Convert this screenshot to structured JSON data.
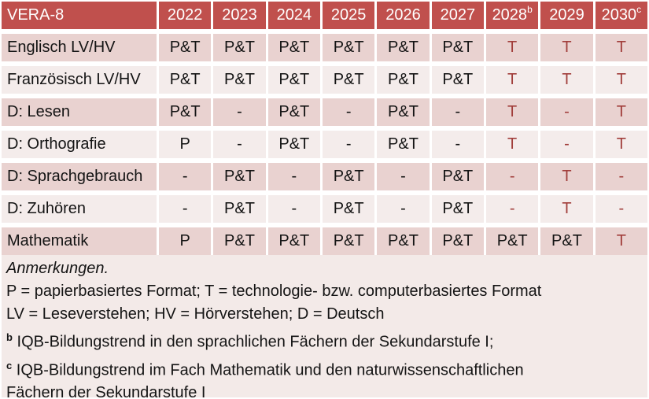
{
  "colors": {
    "header_bg": "#C0504D",
    "header_text": "#FFFFFF",
    "band_dark": "#E9D2D0",
    "band_light": "#F4ECEB",
    "notes_bg": "#F3EAE8",
    "accent_text": "#A13E3B",
    "body_text": "#141414"
  },
  "table": {
    "title": "VERA-8",
    "columns": [
      {
        "year": "2022",
        "sup": ""
      },
      {
        "year": "2023",
        "sup": ""
      },
      {
        "year": "2024",
        "sup": ""
      },
      {
        "year": "2025",
        "sup": ""
      },
      {
        "year": "2026",
        "sup": ""
      },
      {
        "year": "2027",
        "sup": ""
      },
      {
        "year": "2028",
        "sup": "b"
      },
      {
        "year": "2029",
        "sup": ""
      },
      {
        "year": "2030",
        "sup": "c"
      }
    ],
    "rows": [
      {
        "label": "Englisch LV/HV",
        "band": "dark",
        "cells": [
          {
            "text": "P&T"
          },
          {
            "text": "P&T"
          },
          {
            "text": "P&T"
          },
          {
            "text": "P&T"
          },
          {
            "text": "P&T"
          },
          {
            "text": "P&T"
          },
          {
            "text": "T",
            "red": true
          },
          {
            "text": "T",
            "red": true
          },
          {
            "text": "T",
            "red": true
          }
        ]
      },
      {
        "label": "Französisch LV/HV",
        "band": "light",
        "cells": [
          {
            "text": "P&T"
          },
          {
            "text": "P&T"
          },
          {
            "text": "P&T"
          },
          {
            "text": "P&T"
          },
          {
            "text": "P&T"
          },
          {
            "text": "P&T"
          },
          {
            "text": "T",
            "red": true
          },
          {
            "text": "T",
            "red": true
          },
          {
            "text": "T",
            "red": true
          }
        ]
      },
      {
        "label": "D: Lesen",
        "band": "dark",
        "cells": [
          {
            "text": "P&T"
          },
          {
            "text": "-"
          },
          {
            "text": "P&T"
          },
          {
            "text": "-"
          },
          {
            "text": "P&T"
          },
          {
            "text": "-"
          },
          {
            "text": "T",
            "red": true
          },
          {
            "text": "-",
            "red": true
          },
          {
            "text": "T",
            "red": true
          }
        ]
      },
      {
        "label": "D: Orthografie",
        "band": "light",
        "cells": [
          {
            "text": "P"
          },
          {
            "text": "-"
          },
          {
            "text": "P&T"
          },
          {
            "text": "-"
          },
          {
            "text": "P&T"
          },
          {
            "text": "-"
          },
          {
            "text": "T",
            "red": true
          },
          {
            "text": "-",
            "red": true
          },
          {
            "text": "T",
            "red": true
          }
        ]
      },
      {
        "label": "D: Sprachgebrauch",
        "band": "dark",
        "cells": [
          {
            "text": "-"
          },
          {
            "text": "P&T"
          },
          {
            "text": "-"
          },
          {
            "text": "P&T"
          },
          {
            "text": "-"
          },
          {
            "text": "P&T"
          },
          {
            "text": "-",
            "red": true
          },
          {
            "text": "T",
            "red": true
          },
          {
            "text": "-",
            "red": true
          }
        ]
      },
      {
        "label": "D: Zuhören",
        "band": "light",
        "cells": [
          {
            "text": "-"
          },
          {
            "text": "P&T"
          },
          {
            "text": "-"
          },
          {
            "text": "P&T"
          },
          {
            "text": "-"
          },
          {
            "text": "P&T"
          },
          {
            "text": "-",
            "red": true
          },
          {
            "text": "T",
            "red": true
          },
          {
            "text": "-",
            "red": true
          }
        ]
      },
      {
        "label": "Mathematik",
        "band": "dark",
        "cells": [
          {
            "text": "P"
          },
          {
            "text": "P&T"
          },
          {
            "text": "P&T"
          },
          {
            "text": "P&T"
          },
          {
            "text": "P&T"
          },
          {
            "text": "P&T"
          },
          {
            "text": "P&T"
          },
          {
            "text": "P&T"
          },
          {
            "text": "T",
            "red": true
          }
        ]
      }
    ]
  },
  "notes": {
    "lines": [
      {
        "text": "Anmerkungen.",
        "italic": true
      },
      {
        "text": "P = papierbasiertes Format; T = technologie- bzw. computerbasiertes Format"
      },
      {
        "text": "LV = Leseverstehen; HV = Hörverstehen; D = Deutsch"
      },
      {
        "sup": "b",
        "text": "IQB-Bildungstrend in den sprachlichen Fächern der Sekundarstufe I;"
      },
      {
        "sup": "c",
        "text": "IQB-Bildungstrend im Fach Mathematik und den naturwissenschaftlichen"
      },
      {
        "text": "Fächern der Sekundarstufe I"
      }
    ]
  }
}
